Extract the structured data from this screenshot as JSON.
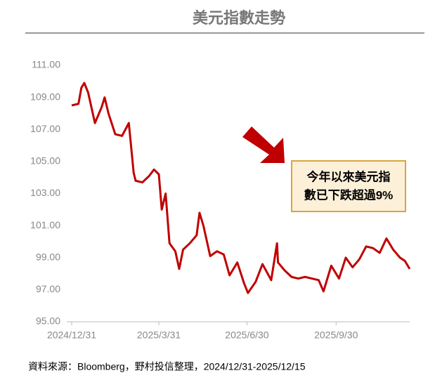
{
  "chart_data": {
    "type": "line",
    "title": "美元指數走勢",
    "x": [
      "2024/12/31",
      "2025/1/7",
      "2025/1/10",
      "2025/1/13",
      "2025/1/17",
      "2025/1/24",
      "2025/1/31",
      "2025/2/3",
      "2025/2/7",
      "2025/2/14",
      "2025/2/21",
      "2025/2/28",
      "2025/3/5",
      "2025/3/7",
      "2025/3/14",
      "2025/3/21",
      "2025/3/26",
      "2025/3/31",
      "2025/4/3",
      "2025/4/7",
      "2025/4/11",
      "2025/4/17",
      "2025/4/21",
      "2025/4/25",
      "2025/5/2",
      "2025/5/9",
      "2025/5/12",
      "2025/5/16",
      "2025/5/23",
      "2025/5/30",
      "2025/6/6",
      "2025/6/12",
      "2025/6/20",
      "2025/6/27",
      "2025/7/1",
      "2025/7/9",
      "2025/7/16",
      "2025/7/25",
      "2025/7/31",
      "2025/8/1",
      "2025/8/8",
      "2025/8/15",
      "2025/8/22",
      "2025/8/29",
      "2025/9/5",
      "2025/9/12",
      "2025/9/17",
      "2025/9/25",
      "2025/10/3",
      "2025/10/10",
      "2025/10/17",
      "2025/10/24",
      "2025/10/31",
      "2025/11/7",
      "2025/11/14",
      "2025/11/21",
      "2025/11/28",
      "2025/12/5",
      "2025/12/10",
      "2025/12/15"
    ],
    "series": [
      {
        "name": "美元指數",
        "color": "#c00000",
        "values": [
          108.5,
          108.6,
          109.6,
          109.9,
          109.3,
          107.4,
          108.4,
          109.0,
          108.0,
          106.7,
          106.6,
          107.4,
          104.3,
          103.8,
          103.7,
          104.1,
          104.5,
          104.2,
          102.0,
          103.0,
          99.9,
          99.4,
          98.3,
          99.5,
          99.9,
          100.4,
          101.8,
          101.0,
          99.1,
          99.4,
          99.2,
          97.9,
          98.7,
          97.4,
          96.8,
          97.5,
          98.6,
          97.6,
          99.9,
          98.7,
          98.2,
          97.8,
          97.7,
          97.8,
          97.7,
          97.6,
          96.9,
          98.5,
          97.7,
          99.0,
          98.4,
          98.9,
          99.7,
          99.6,
          99.3,
          100.2,
          99.5,
          99.0,
          98.8,
          98.3
        ]
      }
    ],
    "xlim": [
      "2024/12/31",
      "2025/12/15"
    ],
    "xticks": [
      "2024/12/31",
      "2025/3/31",
      "2025/6/30",
      "2025/9/30"
    ],
    "ylim": [
      95,
      111
    ],
    "yticks": [
      {
        "value": 95,
        "label": "95.00"
      },
      {
        "value": 97,
        "label": "97.00"
      },
      {
        "value": 99,
        "label": "99.00"
      },
      {
        "value": 101,
        "label": "101.00"
      },
      {
        "value": 103,
        "label": "103.00"
      },
      {
        "value": 105,
        "label": "105.00"
      },
      {
        "value": 107,
        "label": "107.00"
      },
      {
        "value": 109,
        "label": "109.00"
      },
      {
        "value": 111,
        "label": "111.00"
      }
    ],
    "annotation": [
      "今年以來美元指",
      "數已下跌超過9%"
    ],
    "source": "資料來源：Bloomberg，野村投信整理，2024/12/31-2025/12/15"
  }
}
